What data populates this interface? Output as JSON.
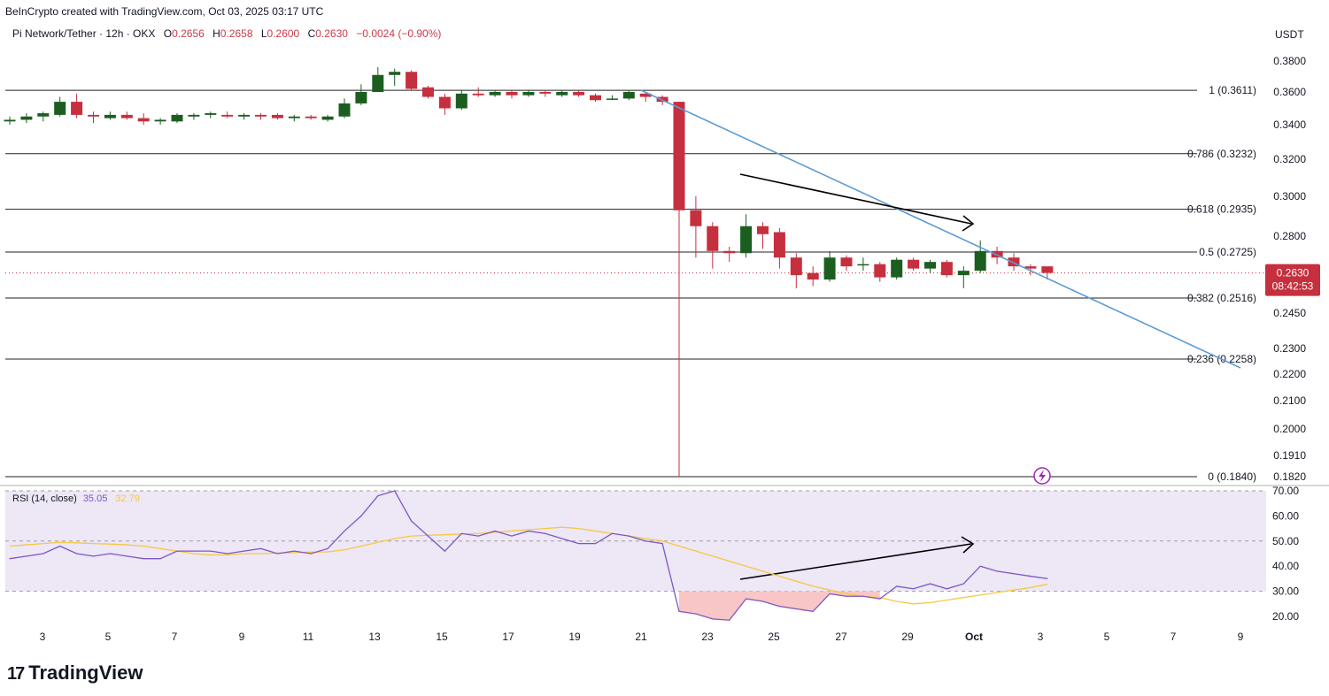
{
  "header": {
    "creator": "BeInCrypto created with TradingView.com, Oct 03, 2025 03:17 UTC",
    "symbol": "Pi Network/Tether · 12h · OKX",
    "open_label": "O",
    "open": "0.2656",
    "high_label": "H",
    "high": "0.2658",
    "low_label": "L",
    "low": "0.2600",
    "close_label": "C",
    "close": "0.2630",
    "change": "−0.0024 (−0.90%)",
    "unit": "USDT"
  },
  "price_badge": {
    "price": "0.2630",
    "countdown": "08:42:53"
  },
  "rsi_header": {
    "label": "RSI (14, close)",
    "rsi": "35.05",
    "ma": "32.79"
  },
  "brand": {
    "logo": "17",
    "name": "TradingView"
  },
  "chart_data": [
    {
      "type": "candlestick",
      "interval": "12h",
      "price_axis": [
        0.38,
        0.36,
        0.34,
        0.32,
        0.3,
        0.28,
        0.245,
        0.23,
        0.22,
        0.21,
        0.2,
        0.191,
        0.182
      ],
      "x_ticks": [
        "3",
        "5",
        "7",
        "9",
        "11",
        "13",
        "15",
        "17",
        "19",
        "21",
        "23",
        "25",
        "27",
        "29",
        "Oct",
        "3",
        "5",
        "7",
        "9"
      ],
      "candles": [
        {
          "o": 0.342,
          "h": 0.345,
          "l": 0.34,
          "c": 0.343
        },
        {
          "o": 0.343,
          "h": 0.347,
          "l": 0.341,
          "c": 0.345
        },
        {
          "o": 0.345,
          "h": 0.348,
          "l": 0.342,
          "c": 0.347
        },
        {
          "o": 0.346,
          "h": 0.357,
          "l": 0.345,
          "c": 0.354
        },
        {
          "o": 0.354,
          "h": 0.359,
          "l": 0.344,
          "c": 0.346
        },
        {
          "o": 0.346,
          "h": 0.348,
          "l": 0.341,
          "c": 0.345
        },
        {
          "o": 0.344,
          "h": 0.348,
          "l": 0.343,
          "c": 0.346
        },
        {
          "o": 0.346,
          "h": 0.348,
          "l": 0.343,
          "c": 0.344
        },
        {
          "o": 0.344,
          "h": 0.347,
          "l": 0.34,
          "c": 0.342
        },
        {
          "o": 0.342,
          "h": 0.344,
          "l": 0.34,
          "c": 0.343
        },
        {
          "o": 0.342,
          "h": 0.347,
          "l": 0.341,
          "c": 0.346
        },
        {
          "o": 0.345,
          "h": 0.347,
          "l": 0.343,
          "c": 0.346
        },
        {
          "o": 0.346,
          "h": 0.348,
          "l": 0.344,
          "c": 0.347
        },
        {
          "o": 0.346,
          "h": 0.348,
          "l": 0.344,
          "c": 0.345
        },
        {
          "o": 0.345,
          "h": 0.347,
          "l": 0.343,
          "c": 0.346
        },
        {
          "o": 0.346,
          "h": 0.347,
          "l": 0.343,
          "c": 0.345
        },
        {
          "o": 0.346,
          "h": 0.347,
          "l": 0.343,
          "c": 0.344
        },
        {
          "o": 0.344,
          "h": 0.346,
          "l": 0.342,
          "c": 0.345
        },
        {
          "o": 0.345,
          "h": 0.346,
          "l": 0.343,
          "c": 0.344
        },
        {
          "o": 0.343,
          "h": 0.346,
          "l": 0.342,
          "c": 0.345
        },
        {
          "o": 0.345,
          "h": 0.356,
          "l": 0.344,
          "c": 0.353
        },
        {
          "o": 0.353,
          "h": 0.365,
          "l": 0.352,
          "c": 0.36
        },
        {
          "o": 0.36,
          "h": 0.376,
          "l": 0.36,
          "c": 0.371
        },
        {
          "o": 0.371,
          "h": 0.375,
          "l": 0.364,
          "c": 0.373
        },
        {
          "o": 0.373,
          "h": 0.374,
          "l": 0.361,
          "c": 0.362
        },
        {
          "o": 0.363,
          "h": 0.364,
          "l": 0.356,
          "c": 0.357
        },
        {
          "o": 0.357,
          "h": 0.359,
          "l": 0.346,
          "c": 0.35
        },
        {
          "o": 0.35,
          "h": 0.361,
          "l": 0.349,
          "c": 0.359
        },
        {
          "o": 0.359,
          "h": 0.363,
          "l": 0.357,
          "c": 0.358
        },
        {
          "o": 0.358,
          "h": 0.361,
          "l": 0.357,
          "c": 0.36
        },
        {
          "o": 0.36,
          "h": 0.361,
          "l": 0.356,
          "c": 0.358
        },
        {
          "o": 0.358,
          "h": 0.361,
          "l": 0.357,
          "c": 0.36
        },
        {
          "o": 0.36,
          "h": 0.361,
          "l": 0.357,
          "c": 0.359
        },
        {
          "o": 0.358,
          "h": 0.361,
          "l": 0.357,
          "c": 0.36
        },
        {
          "o": 0.36,
          "h": 0.361,
          "l": 0.357,
          "c": 0.358
        },
        {
          "o": 0.358,
          "h": 0.359,
          "l": 0.354,
          "c": 0.355
        },
        {
          "o": 0.356,
          "h": 0.358,
          "l": 0.355,
          "c": 0.356
        },
        {
          "o": 0.356,
          "h": 0.361,
          "l": 0.355,
          "c": 0.36
        },
        {
          "o": 0.359,
          "h": 0.36,
          "l": 0.354,
          "c": 0.357
        },
        {
          "o": 0.357,
          "h": 0.358,
          "l": 0.352,
          "c": 0.354
        },
        {
          "o": 0.354,
          "h": 0.354,
          "l": 0.184,
          "c": 0.293
        },
        {
          "o": 0.293,
          "h": 0.3,
          "l": 0.27,
          "c": 0.285
        },
        {
          "o": 0.285,
          "h": 0.287,
          "l": 0.265,
          "c": 0.273
        },
        {
          "o": 0.273,
          "h": 0.275,
          "l": 0.268,
          "c": 0.272
        },
        {
          "o": 0.272,
          "h": 0.291,
          "l": 0.27,
          "c": 0.285
        },
        {
          "o": 0.285,
          "h": 0.287,
          "l": 0.274,
          "c": 0.281
        },
        {
          "o": 0.282,
          "h": 0.284,
          "l": 0.265,
          "c": 0.27
        },
        {
          "o": 0.27,
          "h": 0.272,
          "l": 0.256,
          "c": 0.262
        },
        {
          "o": 0.263,
          "h": 0.266,
          "l": 0.257,
          "c": 0.26
        },
        {
          "o": 0.26,
          "h": 0.273,
          "l": 0.259,
          "c": 0.27
        },
        {
          "o": 0.27,
          "h": 0.271,
          "l": 0.264,
          "c": 0.266
        },
        {
          "o": 0.267,
          "h": 0.27,
          "l": 0.264,
          "c": 0.267
        },
        {
          "o": 0.267,
          "h": 0.268,
          "l": 0.259,
          "c": 0.261
        },
        {
          "o": 0.261,
          "h": 0.27,
          "l": 0.26,
          "c": 0.269
        },
        {
          "o": 0.269,
          "h": 0.27,
          "l": 0.264,
          "c": 0.265
        },
        {
          "o": 0.265,
          "h": 0.269,
          "l": 0.263,
          "c": 0.268
        },
        {
          "o": 0.268,
          "h": 0.269,
          "l": 0.261,
          "c": 0.262
        },
        {
          "o": 0.262,
          "h": 0.266,
          "l": 0.256,
          "c": 0.264
        },
        {
          "o": 0.264,
          "h": 0.278,
          "l": 0.263,
          "c": 0.273
        },
        {
          "o": 0.273,
          "h": 0.275,
          "l": 0.267,
          "c": 0.27
        },
        {
          "o": 0.27,
          "h": 0.272,
          "l": 0.264,
          "c": 0.266
        },
        {
          "o": 0.266,
          "h": 0.267,
          "l": 0.262,
          "c": 0.265
        },
        {
          "o": 0.266,
          "h": 0.2658,
          "l": 0.26,
          "c": 0.263
        }
      ],
      "fib_levels": [
        {
          "label": "1 (0.3611)",
          "value": 0.3611
        },
        {
          "label": "0.786 (0.3232)",
          "value": 0.3232
        },
        {
          "label": "0.618 (0.2935)",
          "value": 0.2935
        },
        {
          "label": "0.5 (0.2725)",
          "value": 0.2725
        },
        {
          "label": "0.382 (0.2516)",
          "value": 0.2516
        },
        {
          "label": "0.236 (0.2258)",
          "value": 0.2258
        },
        {
          "label": "0 (0.1840)",
          "value": 0.184
        }
      ],
      "current_price": 0.263,
      "colors": {
        "up": "#1b5e20",
        "down": "#c62f3e",
        "trendline": "#5b9bd5",
        "fib": "#222222",
        "price_line": "#c62f3e"
      }
    },
    {
      "type": "line",
      "name": "RSI (14, close)",
      "y_axis": [
        70.0,
        60.0,
        50.0,
        40.0,
        30.0,
        20.0
      ],
      "bands": {
        "upper": 70,
        "middle": 50,
        "lower": 30
      },
      "rsi": [
        43,
        44,
        45,
        48,
        45,
        44,
        45,
        44,
        43,
        43,
        46,
        46,
        46,
        45,
        46,
        47,
        45,
        46,
        45,
        47,
        54,
        60,
        68,
        70,
        58,
        52,
        46,
        53,
        52,
        54,
        52,
        54,
        53,
        51,
        49,
        49,
        53,
        52,
        50,
        49,
        22,
        21,
        19,
        18.5,
        27,
        26,
        24,
        23,
        22,
        29,
        28,
        28,
        27,
        32,
        31,
        33,
        31,
        33,
        40,
        38,
        37,
        36,
        35.05
      ],
      "ma": [
        48,
        48.5,
        49,
        49.5,
        49.3,
        49,
        48.8,
        48.5,
        48,
        47,
        46,
        45,
        44.5,
        44.5,
        45,
        45,
        45.2,
        45.4,
        45.6,
        45.7,
        46.5,
        48,
        49.5,
        51,
        52,
        52.3,
        52.5,
        52.8,
        53,
        53.5,
        54,
        54.5,
        55,
        55.5,
        55,
        54,
        53,
        52,
        51,
        50,
        48,
        46,
        44,
        42,
        40,
        38,
        36,
        34,
        32,
        30.5,
        29,
        28,
        27.5,
        26,
        25,
        25.5,
        26.5,
        27.5,
        28.5,
        29.5,
        30.5,
        31.5,
        32.79
      ],
      "colors": {
        "rsi": "#7e57c2",
        "ma": "#f5c842",
        "band_fill": "#ede7f6",
        "oversold_fill": "#f8c6c6"
      }
    }
  ]
}
